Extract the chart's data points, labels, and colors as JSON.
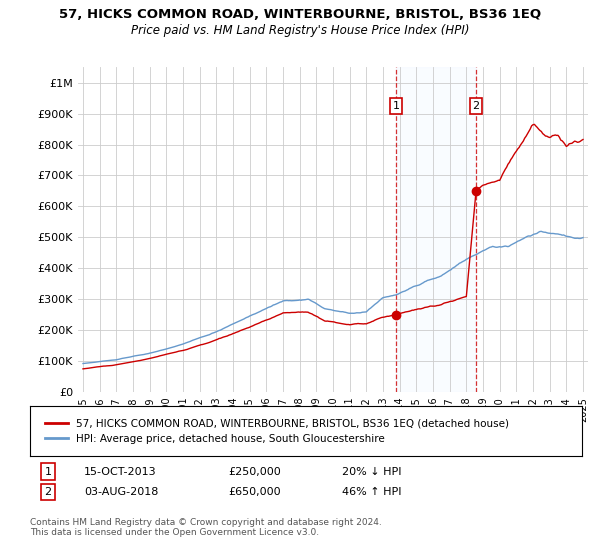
{
  "title": "57, HICKS COMMON ROAD, WINTERBOURNE, BRISTOL, BS36 1EQ",
  "subtitle": "Price paid vs. HM Land Registry's House Price Index (HPI)",
  "legend_label_red": "57, HICKS COMMON ROAD, WINTERBOURNE, BRISTOL, BS36 1EQ (detached house)",
  "legend_label_blue": "HPI: Average price, detached house, South Gloucestershire",
  "annotation1_date": "15-OCT-2013",
  "annotation1_price": "£250,000",
  "annotation1_hpi": "20% ↓ HPI",
  "annotation1_year": 2013.79,
  "annotation1_value": 250000,
  "annotation2_date": "03-AUG-2018",
  "annotation2_price": "£650,000",
  "annotation2_hpi": "46% ↑ HPI",
  "annotation2_year": 2018.58,
  "annotation2_value": 650000,
  "ylim": [
    0,
    1050000
  ],
  "xlim": [
    1994.7,
    2025.3
  ],
  "footer": "Contains HM Land Registry data © Crown copyright and database right 2024.\nThis data is licensed under the Open Government Licence v3.0.",
  "red_color": "#cc0000",
  "blue_color": "#6699cc",
  "shaded_color": "#ddeeff",
  "grid_color": "#cccccc",
  "background_color": "#ffffff",
  "yticks": [
    0,
    100000,
    200000,
    300000,
    400000,
    500000,
    600000,
    700000,
    800000,
    900000,
    1000000
  ],
  "ytick_labels": [
    "£0",
    "£100K",
    "£200K",
    "£300K",
    "£400K",
    "£500K",
    "£600K",
    "£700K",
    "£800K",
    "£900K",
    "£1M"
  ]
}
